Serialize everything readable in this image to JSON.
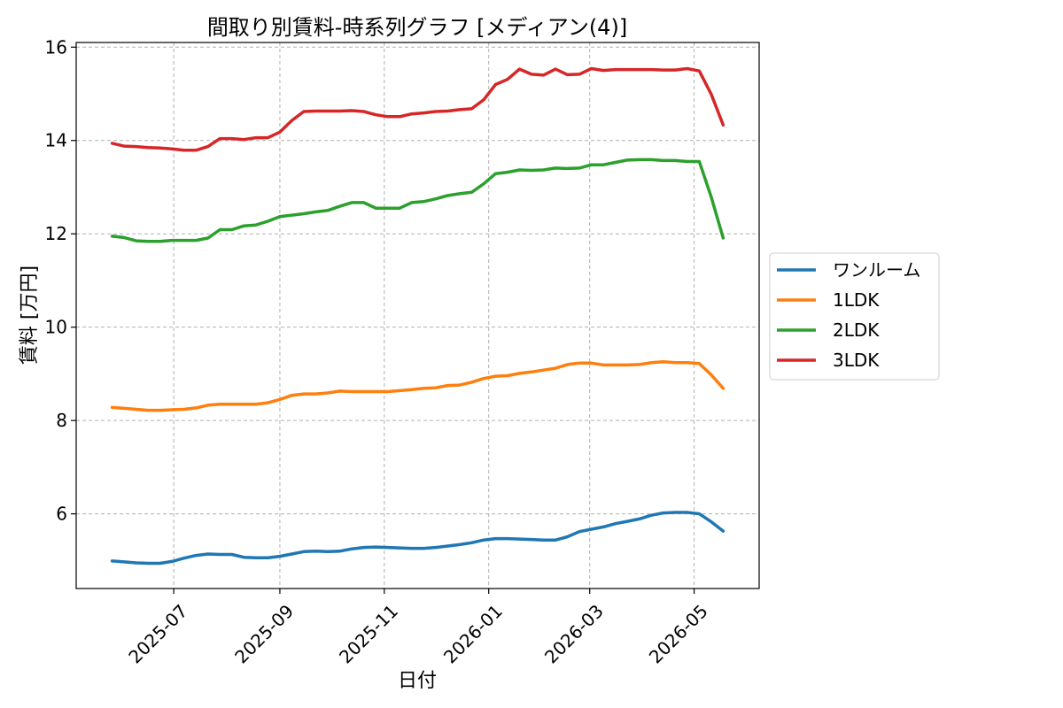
{
  "chart_data": {
    "type": "line",
    "title": "間取り別賃料-時系列グラフ [メディアン(4)]",
    "xlabel": "日付",
    "ylabel": "賃料 [万円]",
    "ylim": [
      4.4,
      16.1
    ],
    "yticks": [
      6,
      8,
      10,
      12,
      14,
      16
    ],
    "xlim": [
      "2025-05-05",
      "2026-06-08"
    ],
    "xticks": [
      "2025-07",
      "2025-09",
      "2025-11",
      "2026-01",
      "2026-03",
      "2026-05"
    ],
    "grid": true,
    "legend_position": "right",
    "x": [
      "2025-05-26",
      "2025-06-02",
      "2025-06-09",
      "2025-06-16",
      "2025-06-23",
      "2025-06-30",
      "2025-07-07",
      "2025-07-14",
      "2025-07-21",
      "2025-07-28",
      "2025-08-04",
      "2025-08-11",
      "2025-08-18",
      "2025-08-25",
      "2025-09-01",
      "2025-09-08",
      "2025-09-15",
      "2025-09-22",
      "2025-09-29",
      "2025-10-06",
      "2025-10-13",
      "2025-10-20",
      "2025-10-27",
      "2025-11-03",
      "2025-11-10",
      "2025-11-17",
      "2025-11-24",
      "2025-12-01",
      "2025-12-08",
      "2025-12-15",
      "2025-12-22",
      "2025-12-29",
      "2026-01-05",
      "2026-01-12",
      "2026-01-19",
      "2026-01-26",
      "2026-02-02",
      "2026-02-09",
      "2026-02-16",
      "2026-02-23",
      "2026-03-02",
      "2026-03-09",
      "2026-03-16",
      "2026-03-23",
      "2026-03-30",
      "2026-04-06",
      "2026-04-13",
      "2026-04-20",
      "2026-04-27",
      "2026-05-04",
      "2026-05-11",
      "2026-05-18"
    ],
    "series": [
      {
        "name": "ワンルーム",
        "color": "#1f77b4",
        "values": [
          4.99,
          4.97,
          4.95,
          4.94,
          4.94,
          4.98,
          5.05,
          5.11,
          5.14,
          5.13,
          5.13,
          5.07,
          5.06,
          5.06,
          5.09,
          5.14,
          5.19,
          5.2,
          5.19,
          5.2,
          5.25,
          5.28,
          5.29,
          5.28,
          5.27,
          5.26,
          5.26,
          5.28,
          5.31,
          5.34,
          5.38,
          5.44,
          5.47,
          5.47,
          5.46,
          5.45,
          5.44,
          5.44,
          5.51,
          5.62,
          5.67,
          5.72,
          5.79,
          5.84,
          5.89,
          5.97,
          6.02,
          6.03,
          6.03,
          6.0,
          5.83,
          5.63
        ]
      },
      {
        "name": "1LDK",
        "color": "#ff7f0e",
        "values": [
          8.28,
          8.26,
          8.24,
          8.22,
          8.22,
          8.23,
          8.24,
          8.27,
          8.33,
          8.35,
          8.35,
          8.35,
          8.35,
          8.38,
          8.45,
          8.54,
          8.57,
          8.57,
          8.59,
          8.63,
          8.62,
          8.62,
          8.62,
          8.62,
          8.64,
          8.66,
          8.69,
          8.7,
          8.75,
          8.76,
          8.82,
          8.9,
          8.95,
          8.96,
          9.01,
          9.04,
          9.08,
          9.12,
          9.2,
          9.23,
          9.23,
          9.19,
          9.19,
          9.19,
          9.2,
          9.24,
          9.26,
          9.24,
          9.24,
          9.22,
          8.98,
          8.69
        ]
      },
      {
        "name": "2LDK",
        "color": "#2ca02c",
        "values": [
          11.95,
          11.92,
          11.85,
          11.84,
          11.84,
          11.86,
          11.86,
          11.86,
          11.91,
          12.09,
          12.09,
          12.17,
          12.19,
          12.27,
          12.37,
          12.4,
          12.43,
          12.47,
          12.5,
          12.59,
          12.67,
          12.67,
          12.55,
          12.55,
          12.55,
          12.67,
          12.69,
          12.75,
          12.82,
          12.86,
          12.89,
          13.07,
          13.29,
          13.32,
          13.37,
          13.36,
          13.37,
          13.41,
          13.4,
          13.41,
          13.48,
          13.48,
          13.53,
          13.58,
          13.59,
          13.59,
          13.57,
          13.57,
          13.55,
          13.55,
          12.79,
          11.91
        ]
      },
      {
        "name": "3LDK",
        "color": "#d62728",
        "values": [
          13.94,
          13.88,
          13.87,
          13.85,
          13.84,
          13.82,
          13.79,
          13.79,
          13.87,
          14.04,
          14.04,
          14.02,
          14.06,
          14.06,
          14.18,
          14.43,
          14.62,
          14.63,
          14.63,
          14.63,
          14.64,
          14.62,
          14.55,
          14.51,
          14.51,
          14.57,
          14.59,
          14.62,
          14.63,
          14.66,
          14.68,
          14.87,
          15.2,
          15.31,
          15.53,
          15.42,
          15.4,
          15.53,
          15.41,
          15.42,
          15.54,
          15.5,
          15.52,
          15.52,
          15.52,
          15.52,
          15.51,
          15.51,
          15.54,
          15.49,
          14.99,
          14.33
        ]
      }
    ]
  }
}
